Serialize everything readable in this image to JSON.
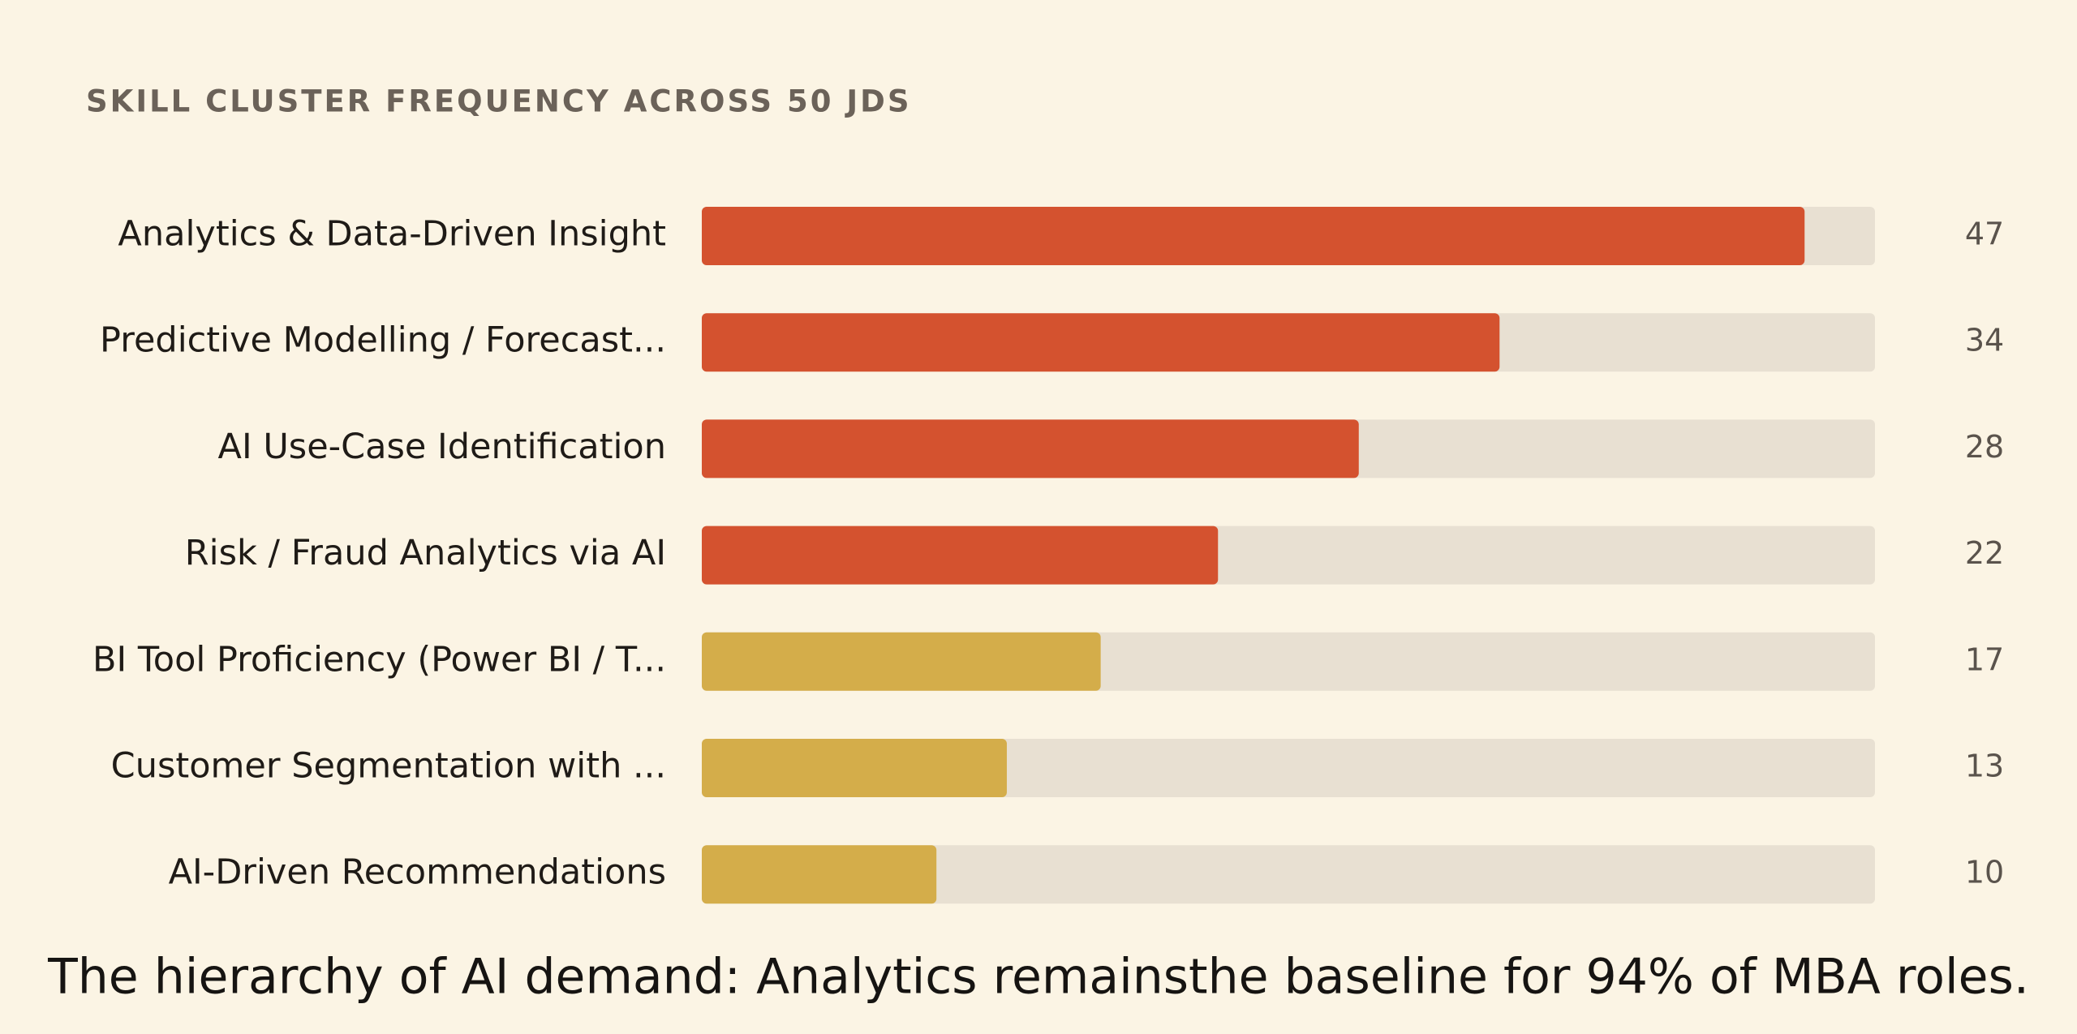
{
  "chart_data": {
    "type": "hbar",
    "title": "SKILL CLUSTER FREQUENCY ACROSS 50 JDS",
    "categories": [
      "Analytics & Data-Driven Insight",
      "Predictive Modelling / Forecast...",
      "AI Use-Case Identification",
      "Risk / Fraud Analytics via AI",
      "BI Tool Proficiency (Power BI / T...",
      "Customer Segmentation with ...",
      "AI-Driven Recommendations"
    ],
    "values": [
      47,
      34,
      28,
      22,
      17,
      13,
      10
    ],
    "colors": [
      "#d4522f",
      "#d4522f",
      "#d4522f",
      "#d4522f",
      "#d4ad4a",
      "#d4ad4a",
      "#d4ad4a"
    ],
    "track_color": "#e8e0d2",
    "xlim": [
      0,
      50
    ],
    "caption": "The hierarchy of AI demand: Analytics remainsthe baseline for 94% of MBA roles."
  }
}
